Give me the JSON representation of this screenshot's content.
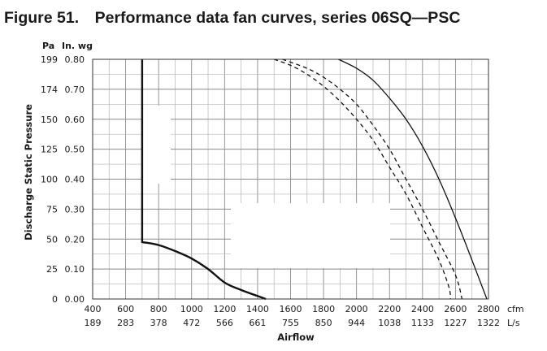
{
  "title": "Figure 51. Performance data fan curves, series 06SQ—PSC",
  "y_unit_pa": "Pa",
  "y_unit_inwg": "In. wg",
  "x_unit_cfm": "cfm",
  "x_unit_ls": "L/s",
  "ylabel": "Discharge Static Pressure",
  "xlabel": "Airflow",
  "chart_data": {
    "type": "line",
    "title": "Performance data fan curves, series 06SQ—PSC",
    "xlabel": "Airflow",
    "ylabel": "Discharge Static Pressure",
    "xlim": [
      400,
      2800
    ],
    "ylim": [
      0,
      0.8
    ],
    "grid": true,
    "x_ticks_cfm": [
      "400",
      "600",
      "800",
      "1000",
      "1200",
      "1400",
      "1600",
      "1800",
      "2000",
      "2200",
      "2400",
      "2600",
      "2800"
    ],
    "x_ticks_ls": [
      "189",
      "283",
      "378",
      "472",
      "566",
      "661",
      "755",
      "850",
      "944",
      "1038",
      "1133",
      "1227",
      "1322"
    ],
    "y_ticks_inwg": [
      "0.00",
      "0.10",
      "0.20",
      "0.30",
      "0.40",
      "0.50",
      "0.60",
      "0.70",
      "0.80"
    ],
    "y_ticks_pa": [
      "0",
      "25",
      "50",
      "75",
      "100",
      "125",
      "150",
      "174",
      "199"
    ],
    "series": [
      {
        "style": "solid-bold",
        "points": [
          [
            700,
            0.8
          ],
          [
            700,
            0.19
          ],
          [
            800,
            0.18
          ],
          [
            900,
            0.16
          ],
          [
            1000,
            0.135
          ],
          [
            1100,
            0.1
          ],
          [
            1200,
            0.055
          ],
          [
            1300,
            0.03
          ],
          [
            1400,
            0.01
          ],
          [
            1450,
            0
          ]
        ]
      },
      {
        "style": "solid",
        "points": [
          [
            1890,
            0.8
          ],
          [
            2000,
            0.77
          ],
          [
            2100,
            0.73
          ],
          [
            2200,
            0.67
          ],
          [
            2300,
            0.6
          ],
          [
            2400,
            0.51
          ],
          [
            2500,
            0.4
          ],
          [
            2600,
            0.27
          ],
          [
            2700,
            0.13
          ],
          [
            2790,
            0
          ]
        ]
      },
      {
        "style": "dashed",
        "points": [
          [
            1550,
            0.8
          ],
          [
            1700,
            0.77
          ],
          [
            1800,
            0.74
          ],
          [
            1900,
            0.7
          ],
          [
            2000,
            0.65
          ],
          [
            2100,
            0.58
          ],
          [
            2200,
            0.5
          ],
          [
            2300,
            0.4
          ],
          [
            2400,
            0.3
          ],
          [
            2500,
            0.19
          ],
          [
            2600,
            0.08
          ],
          [
            2640,
            0
          ]
        ]
      },
      {
        "style": "dashed",
        "points": [
          [
            1500,
            0.8
          ],
          [
            1600,
            0.78
          ],
          [
            1700,
            0.75
          ],
          [
            1800,
            0.71
          ],
          [
            1900,
            0.66
          ],
          [
            2000,
            0.6
          ],
          [
            2100,
            0.53
          ],
          [
            2200,
            0.44
          ],
          [
            2300,
            0.35
          ],
          [
            2400,
            0.24
          ],
          [
            2500,
            0.13
          ],
          [
            2560,
            0.04
          ],
          [
            2570,
            0
          ]
        ]
      }
    ]
  }
}
